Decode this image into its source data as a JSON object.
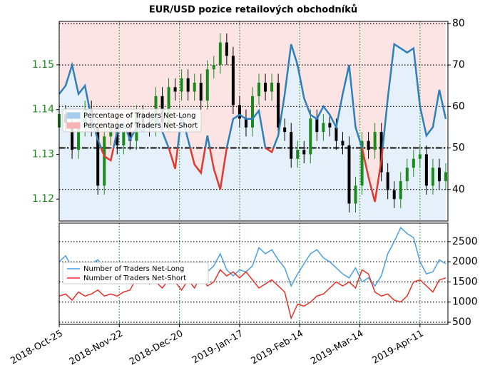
{
  "chart_data": [
    {
      "type": "candlestick",
      "title": "EUR/USD pozice retailových obchodníků",
      "x": [
        "2018-10-25",
        "2018-10-28",
        "2018-10-31",
        "2018-11-03",
        "2018-11-06",
        "2018-11-09",
        "2018-11-12",
        "2018-11-15",
        "2018-11-18",
        "2018-11-21",
        "2018-11-24",
        "2018-11-27",
        "2018-11-30",
        "2018-12-03",
        "2018-12-06",
        "2018-12-09",
        "2018-12-12",
        "2018-12-15",
        "2018-12-18",
        "2018-12-21",
        "2018-12-24",
        "2018-12-27",
        "2018-12-30",
        "2019-01-02",
        "2019-01-05",
        "2019-01-08",
        "2019-01-11",
        "2019-01-14",
        "2019-01-17",
        "2019-01-20",
        "2019-01-23",
        "2019-01-26",
        "2019-01-29",
        "2019-02-01",
        "2019-02-04",
        "2019-02-07",
        "2019-02-10",
        "2019-02-13",
        "2019-02-16",
        "2019-02-19",
        "2019-02-22",
        "2019-02-25",
        "2019-02-28",
        "2019-03-03",
        "2019-03-06",
        "2019-03-09",
        "2019-03-12",
        "2019-03-15",
        "2019-03-18",
        "2019-03-21",
        "2019-03-24",
        "2019-03-27",
        "2019-03-30",
        "2019-04-02",
        "2019-04-05",
        "2019-04-08",
        "2019-04-11",
        "2019-04-14",
        "2019-04-17",
        "2019-04-20",
        "2019-04-23"
      ],
      "open": [
        1.136,
        1.139,
        1.137,
        1.131,
        1.136,
        1.14,
        1.136,
        1.123,
        1.134,
        1.136,
        1.132,
        1.135,
        1.133,
        1.139,
        1.137,
        1.136,
        1.143,
        1.137,
        1.145,
        1.144,
        1.147,
        1.144,
        1.146,
        1.142,
        1.149,
        1.15,
        1.155,
        1.152,
        1.141,
        1.138,
        1.136,
        1.143,
        1.146,
        1.144,
        1.146,
        1.136,
        1.135,
        1.129,
        1.131,
        1.13,
        1.138,
        1.135,
        1.137,
        1.136,
        1.133,
        1.132,
        1.119,
        1.123,
        1.133,
        1.131,
        1.135,
        1.126,
        1.122,
        1.12,
        1.124,
        1.127,
        1.129,
        1.13,
        1.123,
        1.127,
        1.124
      ],
      "high": [
        1.141,
        1.141,
        1.139,
        1.138,
        1.142,
        1.142,
        1.138,
        1.136,
        1.138,
        1.138,
        1.137,
        1.137,
        1.141,
        1.141,
        1.139,
        1.145,
        1.145,
        1.147,
        1.147,
        1.149,
        1.149,
        1.148,
        1.148,
        1.151,
        1.152,
        1.157,
        1.157,
        1.154,
        1.143,
        1.14,
        1.145,
        1.148,
        1.148,
        1.148,
        1.148,
        1.138,
        1.137,
        1.133,
        1.133,
        1.14,
        1.14,
        1.139,
        1.139,
        1.138,
        1.135,
        1.134,
        1.125,
        1.135,
        1.135,
        1.137,
        1.137,
        1.128,
        1.124,
        1.126,
        1.129,
        1.131,
        1.132,
        1.132,
        1.129,
        1.129,
        1.128
      ],
      "low": [
        1.134,
        1.135,
        1.129,
        1.129,
        1.134,
        1.134,
        1.121,
        1.121,
        1.132,
        1.13,
        1.13,
        1.131,
        1.131,
        1.135,
        1.134,
        1.134,
        1.135,
        1.135,
        1.142,
        1.142,
        1.142,
        1.142,
        1.14,
        1.14,
        1.147,
        1.148,
        1.15,
        1.139,
        1.136,
        1.134,
        1.134,
        1.141,
        1.142,
        1.142,
        1.134,
        1.133,
        1.127,
        1.127,
        1.128,
        1.128,
        1.133,
        1.133,
        1.134,
        1.131,
        1.13,
        1.117,
        1.117,
        1.121,
        1.129,
        1.129,
        1.124,
        1.12,
        1.118,
        1.118,
        1.122,
        1.125,
        1.127,
        1.121,
        1.121,
        1.122,
        1.122
      ],
      "close": [
        1.139,
        1.137,
        1.131,
        1.136,
        1.14,
        1.136,
        1.123,
        1.134,
        1.136,
        1.132,
        1.135,
        1.133,
        1.139,
        1.137,
        1.136,
        1.143,
        1.137,
        1.145,
        1.144,
        1.147,
        1.144,
        1.146,
        1.142,
        1.149,
        1.15,
        1.155,
        1.152,
        1.141,
        1.138,
        1.136,
        1.143,
        1.146,
        1.144,
        1.146,
        1.136,
        1.135,
        1.129,
        1.131,
        1.13,
        1.138,
        1.135,
        1.137,
        1.136,
        1.133,
        1.132,
        1.119,
        1.123,
        1.133,
        1.131,
        1.135,
        1.126,
        1.122,
        1.12,
        1.124,
        1.127,
        1.129,
        1.13,
        1.123,
        1.127,
        1.124,
        1.126
      ],
      "up_color": "#1a8a1a",
      "down_color": "#000000",
      "series": [
        {
          "name": "Percentage of Traders Net-Long",
          "color": "#2f7fba",
          "axis": "y2",
          "values": [
            63,
            65,
            70,
            63,
            65,
            57,
            52,
            48,
            47,
            54,
            56,
            52,
            55,
            54,
            56,
            58,
            54,
            50,
            45,
            58,
            52,
            46,
            44,
            53,
            45,
            40,
            50,
            57,
            58,
            57,
            57,
            59,
            50,
            49,
            53,
            63,
            75,
            70,
            62,
            58,
            57,
            60,
            58,
            55,
            63,
            70,
            55,
            50,
            43,
            37,
            47,
            62,
            75,
            74,
            73,
            74,
            60,
            53,
            55,
            64,
            57
          ]
        }
      ],
      "legend": [
        {
          "name": "Percentage of Traders Net-Long",
          "color": "#a9cdee"
        },
        {
          "name": "Percentage of Traders Net-Short",
          "color": "#f5b3b3"
        }
      ],
      "below_color": "#e03a2e",
      "hline": 50,
      "xlim": [
        "2018-10-25",
        "2019-04-24"
      ],
      "xticks": [
        "2018-10-25",
        "2018-11-22",
        "2018-12-20",
        "2019-01-17",
        "2019-02-14",
        "2019-03-14",
        "2019-04-11"
      ],
      "ylim": [
        1.1151,
        1.1597
      ],
      "yticks": [
        1.12,
        1.13,
        1.14,
        1.15
      ],
      "y2lim": [
        32.4,
        80.5
      ],
      "y2ticks": [
        40,
        50,
        60,
        70,
        80
      ],
      "grid": true
    },
    {
      "type": "line",
      "x": [
        "2018-10-25",
        "2018-10-28",
        "2018-10-31",
        "2018-11-03",
        "2018-11-06",
        "2018-11-09",
        "2018-11-12",
        "2018-11-15",
        "2018-11-18",
        "2018-11-21",
        "2018-11-24",
        "2018-11-27",
        "2018-11-30",
        "2018-12-03",
        "2018-12-06",
        "2018-12-09",
        "2018-12-12",
        "2018-12-15",
        "2018-12-18",
        "2018-12-21",
        "2018-12-24",
        "2018-12-27",
        "2018-12-30",
        "2019-01-02",
        "2019-01-05",
        "2019-01-08",
        "2019-01-11",
        "2019-01-14",
        "2019-01-17",
        "2019-01-20",
        "2019-01-23",
        "2019-01-26",
        "2019-01-29",
        "2019-02-01",
        "2019-02-04",
        "2019-02-07",
        "2019-02-10",
        "2019-02-13",
        "2019-02-16",
        "2019-02-19",
        "2019-02-22",
        "2019-02-25",
        "2019-02-28",
        "2019-03-03",
        "2019-03-06",
        "2019-03-09",
        "2019-03-12",
        "2019-03-15",
        "2019-03-18",
        "2019-03-21",
        "2019-03-24",
        "2019-03-27",
        "2019-03-30",
        "2019-04-02",
        "2019-04-05",
        "2019-04-08",
        "2019-04-11",
        "2019-04-14",
        "2019-04-17",
        "2019-04-20",
        "2019-04-23"
      ],
      "series": [
        {
          "name": "Number of Traders Net-Long",
          "color": "#4a9ee6",
          "values": [
            2000,
            2150,
            1850,
            1900,
            1700,
            1950,
            2050,
            1800,
            1750,
            1900,
            1700,
            1800,
            1750,
            1650,
            1800,
            1600,
            1750,
            1900,
            2000,
            1600,
            1750,
            1900,
            2000,
            1750,
            1900,
            2200,
            1800,
            1650,
            1800,
            1750,
            1900,
            2350,
            2200,
            2300,
            2050,
            1850,
            1400,
            1700,
            1950,
            2200,
            2300,
            2100,
            2000,
            1850,
            1700,
            1600,
            1850,
            1500,
            1600,
            1400,
            1650,
            2200,
            2500,
            2850,
            2700,
            2600,
            2000,
            1700,
            1750,
            2050,
            1950
          ]
        },
        {
          "name": "Number of Traders Net-Short",
          "color": "#e8302a",
          "values": [
            1150,
            1200,
            1050,
            1250,
            1150,
            1200,
            1300,
            1150,
            1200,
            1150,
            1250,
            1300,
            1600,
            1700,
            1450,
            1500,
            1350,
            1550,
            1500,
            1300,
            1550,
            1350,
            1650,
            1400,
            1500,
            1800,
            1650,
            1750,
            1600,
            1750,
            1550,
            1350,
            1450,
            1550,
            1400,
            1250,
            600,
            950,
            900,
            1000,
            1150,
            1200,
            1350,
            1500,
            1400,
            1500,
            1350,
            1800,
            1700,
            1250,
            1150,
            1200,
            1050,
            1000,
            1150,
            1500,
            1550,
            1400,
            1250,
            1550,
            1600
          ]
        }
      ],
      "xlim": [
        "2018-10-25",
        "2019-04-24"
      ],
      "xticks": [
        {
          "value": "2018-10-25",
          "label": "2018-Oct-25"
        },
        {
          "value": "2018-11-22",
          "label": "2018-Nov-22"
        },
        {
          "value": "2018-12-20",
          "label": "2018-Dec-20"
        },
        {
          "value": "2019-01-17",
          "label": "2019-Jan-17"
        },
        {
          "value": "2019-02-14",
          "label": "2019-Feb-14"
        },
        {
          "value": "2019-03-14",
          "label": "2019-Mar-14"
        },
        {
          "value": "2019-04-11",
          "label": "2019-Apr-11"
        }
      ],
      "ylim": [
        447,
        2959
      ],
      "yticks": [
        500,
        1000,
        1500,
        2000,
        2500
      ],
      "grid": true
    }
  ]
}
